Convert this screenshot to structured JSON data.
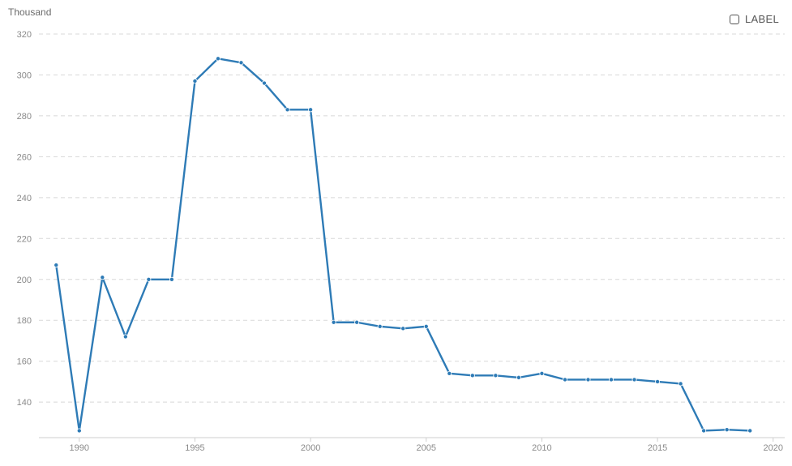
{
  "unit_label": "Thousand",
  "toggle": {
    "label": "LABEL",
    "checked": false
  },
  "colors": {
    "line": "#2e7bb6",
    "grid": "#d8d8d8",
    "axis": "#cfcfcf",
    "tick_text": "#8a8a8a"
  },
  "chart_data": {
    "type": "line",
    "title": "",
    "xlabel": "",
    "ylabel": "Thousand",
    "xlim": [
      1988.5,
      2020.5
    ],
    "ylim": [
      125,
      320
    ],
    "x_ticks": [
      1990,
      1995,
      2000,
      2005,
      2010,
      2015,
      2020
    ],
    "y_ticks": [
      140,
      160,
      180,
      200,
      220,
      240,
      260,
      280,
      300,
      320
    ],
    "grid": true,
    "legend": "top-right",
    "series": [
      {
        "x": [
          1989,
          1990,
          1991,
          1992,
          1993,
          1994,
          1995,
          1996,
          1997,
          1998,
          1999,
          2000,
          2001,
          2002,
          2003,
          2004,
          2005,
          2006,
          2007,
          2008,
          2009,
          2010,
          2011,
          2012,
          2013,
          2014,
          2015,
          2016,
          2017,
          2018,
          2019
        ],
        "values": [
          207,
          126,
          201,
          172,
          200,
          200,
          297,
          308,
          306,
          296,
          283,
          283,
          179,
          179,
          177,
          176,
          177,
          154,
          153,
          153,
          152,
          154,
          151,
          151,
          151,
          151,
          150,
          149,
          126,
          126.5,
          126
        ]
      }
    ]
  }
}
